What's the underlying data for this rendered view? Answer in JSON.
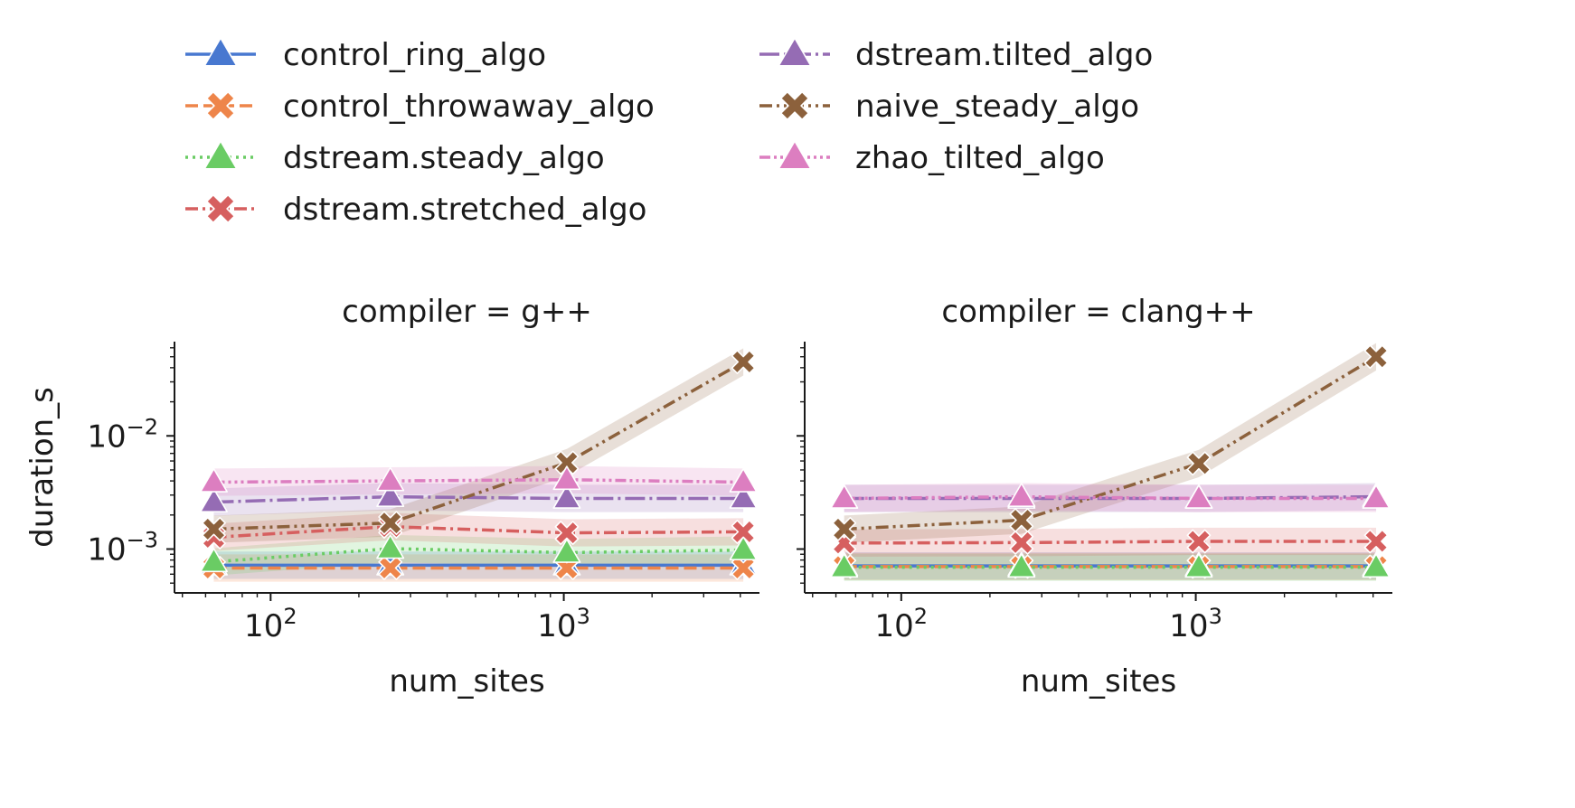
{
  "legend": [
    {
      "name": "control_ring_algo",
      "color": "#4878d0",
      "marker": "triangle",
      "dash": "solid"
    },
    {
      "name": "control_throwaway_algo",
      "color": "#ee854a",
      "marker": "x",
      "dash": "dashed"
    },
    {
      "name": "dstream.steady_algo",
      "color": "#6acc64",
      "marker": "triangle",
      "dash": "dotted"
    },
    {
      "name": "dstream.stretched_algo",
      "color": "#d65f5f",
      "marker": "x",
      "dash": "dashdot"
    },
    {
      "name": "dstream.tilted_algo",
      "color": "#956cb4",
      "marker": "triangle",
      "dash": "longdashdot"
    },
    {
      "name": "naive_steady_algo",
      "color": "#8c613c",
      "marker": "x",
      "dash": "dashdotdot"
    },
    {
      "name": "zhao_tilted_algo",
      "color": "#dc7ec0",
      "marker": "triangle",
      "dash": "dashdotdotdot"
    }
  ],
  "chart_data": [
    {
      "type": "line",
      "title": "compiler = g++",
      "xlabel": "num_sites",
      "ylabel": "duration_s",
      "xscale": "log",
      "yscale": "log",
      "xlim": [
        47,
        4650
      ],
      "ylim": [
        0.00041,
        0.068
      ],
      "xticks": [
        {
          "v": 100,
          "b": "10",
          "e": "2"
        },
        {
          "v": 1000,
          "b": "10",
          "e": "3"
        }
      ],
      "yticks": [
        {
          "v": 0.001,
          "b": "10",
          "e": "−3"
        },
        {
          "v": 0.01,
          "b": "10",
          "e": "−2"
        }
      ],
      "x": [
        64,
        256,
        1024,
        4096
      ],
      "series": [
        {
          "name": "control_ring_algo",
          "values": [
            0.00072,
            0.00072,
            0.00072,
            0.00072
          ]
        },
        {
          "name": "control_throwaway_algo",
          "values": [
            0.00068,
            0.00068,
            0.00068,
            0.00068
          ]
        },
        {
          "name": "dstream.steady_algo",
          "values": [
            0.00077,
            0.00101,
            0.00093,
            0.00098
          ]
        },
        {
          "name": "dstream.stretched_algo",
          "values": [
            0.00127,
            0.00158,
            0.00139,
            0.00142
          ]
        },
        {
          "name": "dstream.tilted_algo",
          "values": [
            0.0026,
            0.0029,
            0.0028,
            0.0028
          ]
        },
        {
          "name": "naive_steady_algo",
          "values": [
            0.0015,
            0.0017,
            0.0058,
            0.045
          ]
        },
        {
          "name": "zhao_tilted_algo",
          "values": [
            0.0039,
            0.004,
            0.0041,
            0.0039
          ]
        }
      ]
    },
    {
      "type": "line",
      "title": "compiler = clang++",
      "xlabel": "num_sites",
      "ylabel": "",
      "xscale": "log",
      "yscale": "log",
      "xlim": [
        47,
        4650
      ],
      "ylim": [
        0.00041,
        0.068
      ],
      "xticks": [
        {
          "v": 100,
          "b": "10",
          "e": "2"
        },
        {
          "v": 1000,
          "b": "10",
          "e": "3"
        }
      ],
      "yticks": [],
      "x": [
        64,
        256,
        1024,
        4096
      ],
      "series": [
        {
          "name": "control_ring_algo",
          "values": [
            0.00071,
            0.00071,
            0.00071,
            0.00071
          ]
        },
        {
          "name": "control_throwaway_algo",
          "values": [
            0.0007,
            0.0007,
            0.0007,
            0.0007
          ]
        },
        {
          "name": "dstream.steady_algo",
          "values": [
            0.00069,
            0.00069,
            0.00069,
            0.00069
          ]
        },
        {
          "name": "dstream.stretched_algo",
          "values": [
            0.00113,
            0.00114,
            0.00117,
            0.00117
          ]
        },
        {
          "name": "dstream.tilted_algo",
          "values": [
            0.0028,
            0.0028,
            0.0028,
            0.0029
          ]
        },
        {
          "name": "naive_steady_algo",
          "values": [
            0.0015,
            0.0018,
            0.0057,
            0.05
          ]
        },
        {
          "name": "zhao_tilted_algo",
          "values": [
            0.0028,
            0.0029,
            0.0028,
            0.0028
          ]
        }
      ]
    }
  ]
}
